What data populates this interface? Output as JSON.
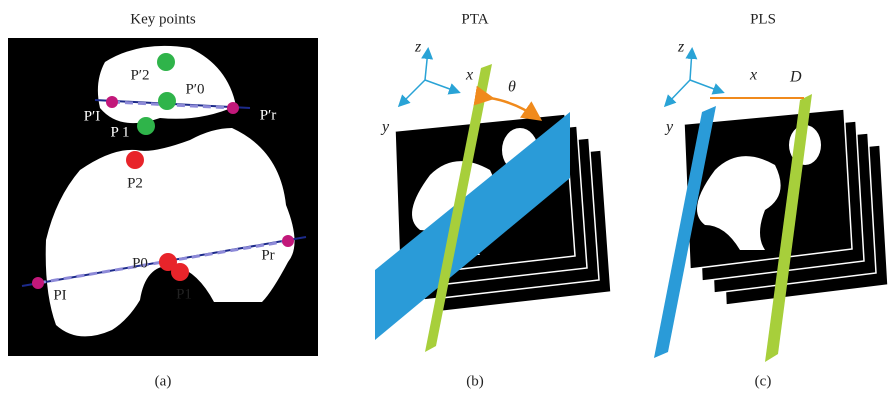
{
  "panels": [
    {
      "title": "Key points",
      "caption": "(a)",
      "points": [
        "P′2",
        "P′0",
        "P′I",
        "P′r",
        "P 1",
        "P2",
        "P0",
        "P1",
        "PI",
        "Pr"
      ]
    },
    {
      "title": "PTA",
      "caption": "(b)",
      "axes": [
        "z",
        "x",
        "y"
      ],
      "angle": "θ"
    },
    {
      "title": "PLS",
      "caption": "(c)",
      "axes": [
        "z",
        "x",
        "y"
      ],
      "distance": "D"
    }
  ]
}
